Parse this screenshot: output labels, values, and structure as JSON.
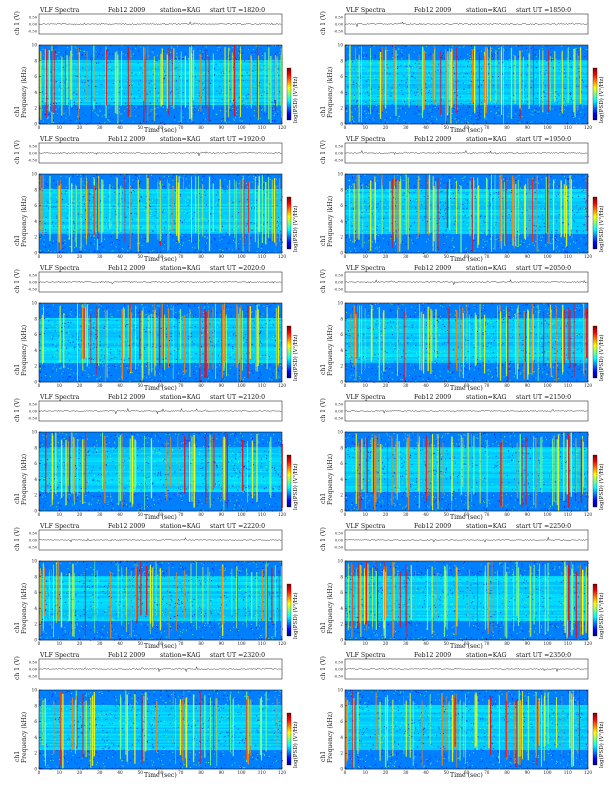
{
  "chart_data": {
    "type": "heatmap",
    "panel_title": "VLF Spectra",
    "date_label": "Feb12 2009",
    "station_label": "station=KAG",
    "xlabel": "Time  (sec)",
    "ylabel_spec": "Frequency  (kHz)",
    "ylabel_amp": "ch 1 (V)",
    "colorbar_label": "log(PSD) (V²/Hz)",
    "x_range": [
      0,
      120
    ],
    "x_ticks": [
      "0",
      "10",
      "20",
      "30",
      "40",
      "50",
      "60",
      "70",
      "80",
      "90",
      "100",
      "110",
      "120"
    ],
    "y_range_khz": [
      0,
      10
    ],
    "y_ticks": [
      "0",
      "2",
      "4",
      "6",
      "8",
      "10"
    ],
    "amp_ticks": [
      "0.50",
      "0.00",
      "-0.50"
    ],
    "colorscale": [
      "#00008f",
      "#0000ff",
      "#0080ff",
      "#00ffff",
      "#80ff80",
      "#ffff00",
      "#ff8000",
      "#ff0000",
      "#800000"
    ],
    "panels": [
      {
        "start_ut": "start  UT =1820:0"
      },
      {
        "start_ut": "start  UT =1850:0"
      },
      {
        "start_ut": "start  UT =1920:0"
      },
      {
        "start_ut": "start  UT =1950:0"
      },
      {
        "start_ut": "start  UT =2020:0"
      },
      {
        "start_ut": "start  UT =2050:0"
      },
      {
        "start_ut": "start  UT =2120:0"
      },
      {
        "start_ut": "start  UT =2150:0"
      },
      {
        "start_ut": "start  UT =2220:0"
      },
      {
        "start_ut": "start  UT =2250:0"
      },
      {
        "start_ut": "start  UT =2320:0"
      },
      {
        "start_ut": "start  UT =2350:0"
      }
    ]
  }
}
